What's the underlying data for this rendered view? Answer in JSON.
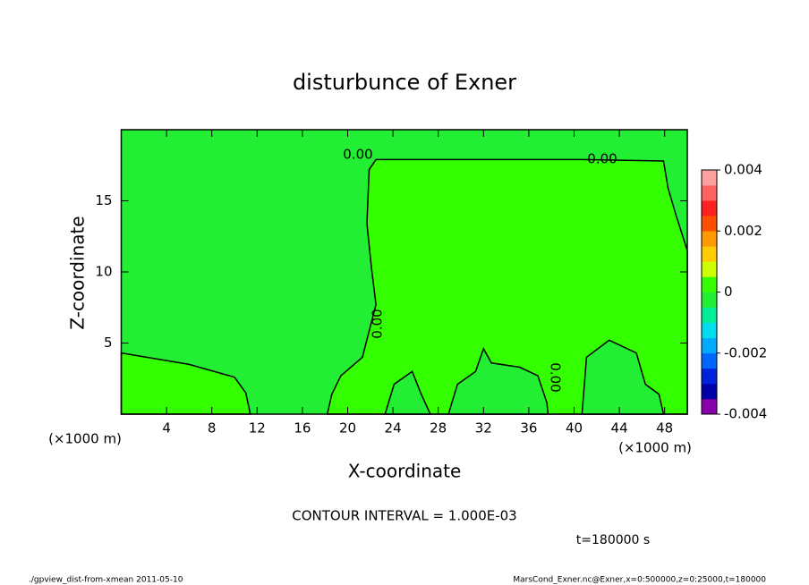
{
  "chart_data": {
    "type": "contour",
    "title": "disturbunce of Exner",
    "xlabel": "X-coordinate",
    "ylabel": "Z-coordinate",
    "x_unit_left": "(×1000 m)",
    "x_unit_right": "(×1000 m)",
    "xlim": [
      0,
      50
    ],
    "ylim": [
      0,
      20
    ],
    "xticks": [
      4,
      8,
      12,
      16,
      20,
      24,
      28,
      32,
      36,
      40,
      44,
      48
    ],
    "yticks": [
      5,
      10,
      15
    ],
    "background_color": "#22ee33",
    "regions": [
      {
        "color": "#33ff00",
        "x": [
          0,
          3,
          6,
          10,
          11,
          11.4,
          0
        ],
        "y": [
          4.3,
          3.9,
          3.5,
          2.6,
          1.5,
          0,
          0
        ]
      },
      {
        "color": "#33ff00",
        "x": [
          18.2,
          18.6,
          19.4,
          21.3,
          22.5,
          22.1,
          21.7,
          21.9,
          22.5,
          28.9,
          40.7,
          47.9,
          48.3,
          49,
          50,
          50
        ],
        "y": [
          0,
          1.4,
          2.7,
          4.0,
          7.7,
          10.3,
          13.4,
          17.2,
          17.9,
          17.9,
          17.9,
          17.8,
          15.9,
          14,
          11.5,
          0
        ]
      },
      {
        "color": "#22ee33",
        "x": [
          23.3,
          24.1,
          25.7,
          26.5,
          27.3
        ],
        "y": [
          0,
          2.1,
          3.0,
          1.4,
          0
        ]
      },
      {
        "color": "#22ee33",
        "x": [
          28.9,
          29.7,
          31.3,
          32,
          32.7,
          35.2,
          36.8,
          37.6,
          37.7
        ],
        "y": [
          0,
          2.1,
          3.0,
          4.6,
          3.6,
          3.3,
          2.7,
          0.8,
          0
        ]
      },
      {
        "color": "#22ee33",
        "x": [
          40.7,
          41.1,
          43.1,
          45.5,
          46.3,
          47.5,
          47.9
        ],
        "y": [
          0,
          4.0,
          5.2,
          4.3,
          2.1,
          1.4,
          0
        ]
      }
    ],
    "contour_labels": [
      "0.00",
      "0.00",
      "0.00",
      "0.00"
    ],
    "colorbar": {
      "clim": [
        -0.004,
        0.004
      ],
      "ticks": [
        0.004,
        0.002,
        0,
        -0.002,
        -0.004
      ],
      "colors": [
        "#8800aa",
        "#0000aa",
        "#0022dd",
        "#0066ff",
        "#00aaff",
        "#00ddee",
        "#00ee99",
        "#22ee33",
        "#33ff00",
        "#ccff00",
        "#ffcc00",
        "#ff9900",
        "#ff5000",
        "#ff2020",
        "#ff6060",
        "#ffa0a0"
      ]
    },
    "contour_interval": "CONTOUR INTERVAL = 1.000E-03",
    "time_label": "t=180000 s",
    "footer_left": "./gpview_dist-from-xmean  2011-05-10",
    "footer_right": "MarsCond_Exner.nc@Exner,x=0:500000,z=0:25000,t=180000"
  }
}
